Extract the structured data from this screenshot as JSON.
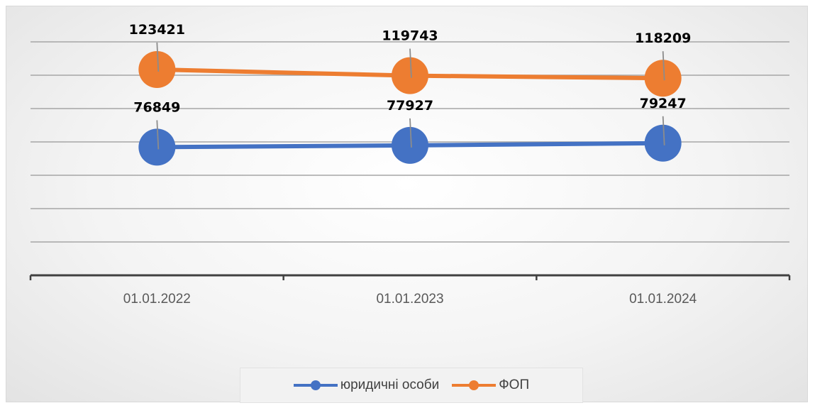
{
  "chart_data": {
    "type": "line",
    "categories": [
      "01.01.2022",
      "01.01.2023",
      "01.01.2024"
    ],
    "series": [
      {
        "name": "юридичні особи",
        "values": [
          76849,
          77927,
          79247
        ],
        "color": "#4472C4"
      },
      {
        "name": "ФОП",
        "values": [
          123421,
          119743,
          118209
        ],
        "color": "#ED7D31"
      }
    ],
    "title": "",
    "xlabel": "",
    "ylabel": "",
    "ylim": [
      0,
      140000
    ],
    "y_axis_labels_visible": false,
    "grid": true,
    "data_labels": true,
    "legend_position": "bottom"
  }
}
